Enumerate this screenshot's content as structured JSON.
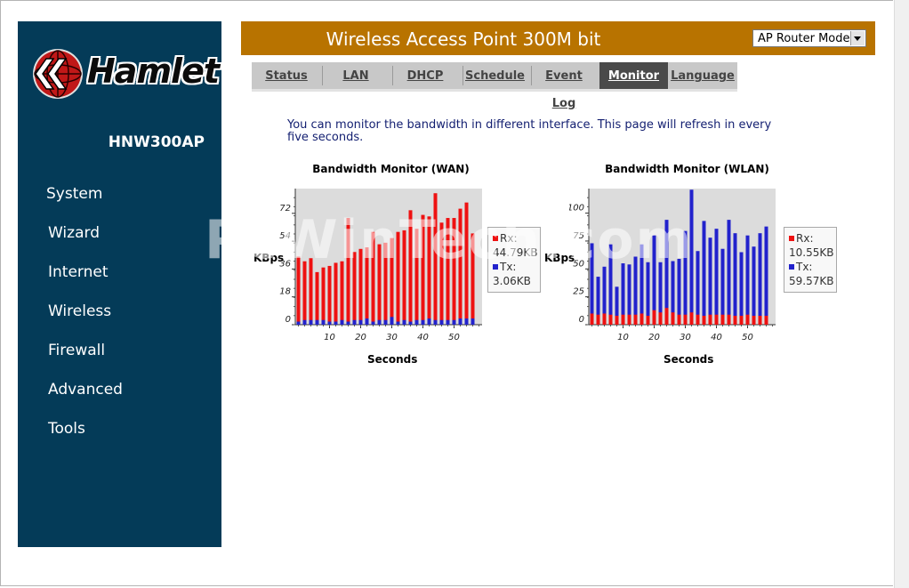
{
  "header": {
    "title": "Wireless Access Point 300M bit",
    "mode_select": "AP Router Mode"
  },
  "brand": {
    "logo_text": "Hamlet",
    "model": "HNW300AP"
  },
  "sidebar": {
    "items": [
      {
        "label": "System"
      },
      {
        "label": "Wizard"
      },
      {
        "label": "Internet"
      },
      {
        "label": "Wireless"
      },
      {
        "label": "Firewall"
      },
      {
        "label": "Advanced"
      },
      {
        "label": "Tools"
      }
    ]
  },
  "tabs": [
    {
      "label": "Status"
    },
    {
      "label": "LAN"
    },
    {
      "label": "DHCP"
    },
    {
      "label": "Schedule"
    },
    {
      "label": "Event Log"
    },
    {
      "label": "Monitor",
      "active": true
    },
    {
      "label": "Language"
    }
  ],
  "description": "You can monitor the bandwidth in different interface. This page will refresh in every five seconds.",
  "watermark": "PcWinTech.com",
  "colors": {
    "rx": "#ee1111",
    "tx": "#2222cc",
    "plot_bg": "#dcdcdc",
    "header": "#b87300",
    "sidebar": "#043b58"
  },
  "chart_data": [
    {
      "type": "bar",
      "title": "Bandwidth Monitor (WAN)",
      "xlabel": "Seconds",
      "ylabel": "KBps",
      "yticks": [
        0,
        18,
        36,
        54,
        72
      ],
      "xticks": [
        10,
        20,
        30,
        40,
        50
      ],
      "ylim": [
        0,
        88
      ],
      "xlim": [
        -1,
        59
      ],
      "x": [
        0,
        2,
        4,
        6,
        8,
        10,
        12,
        14,
        16,
        18,
        20,
        22,
        24,
        26,
        28,
        30,
        32,
        34,
        36,
        38,
        40,
        42,
        44,
        46,
        48,
        50,
        52,
        54,
        56
      ],
      "series": [
        {
          "name": "Rx",
          "values": [
            44,
            41,
            43,
            34,
            37,
            38,
            40,
            41,
            69,
            47,
            49,
            50,
            60,
            52,
            53,
            56,
            60,
            61,
            74,
            62,
            71,
            70,
            85,
            66,
            69,
            69,
            75,
            79,
            59
          ]
        },
        {
          "name": "Tx",
          "values": [
            2,
            3,
            3,
            3,
            3,
            2,
            2,
            3,
            2,
            3,
            3,
            4,
            2,
            3,
            3,
            5,
            2,
            3,
            2,
            3,
            3,
            4,
            3,
            3,
            3,
            3,
            4,
            4,
            4
          ]
        }
      ],
      "legend": [
        {
          "label": "Rx:",
          "value": "44.79KB"
        },
        {
          "label": "Tx:",
          "value": "3.06KB"
        }
      ]
    },
    {
      "type": "bar",
      "title": "Bandwidth Monitor (WLAN)",
      "xlabel": "Seconds",
      "ylabel": "KBps",
      "yticks": [
        0,
        25,
        50,
        75,
        100
      ],
      "xticks": [
        10,
        20,
        30,
        40,
        50
      ],
      "ylim": [
        0,
        122
      ],
      "xlim": [
        -1,
        59
      ],
      "x": [
        0,
        2,
        4,
        6,
        8,
        10,
        12,
        14,
        16,
        18,
        20,
        22,
        24,
        26,
        28,
        30,
        32,
        34,
        36,
        38,
        40,
        42,
        44,
        46,
        48,
        50,
        52,
        54,
        56
      ],
      "series": [
        {
          "name": "Rx",
          "values": [
            10,
            9,
            10,
            9,
            8,
            9,
            9,
            9,
            10,
            8,
            13,
            11,
            15,
            11,
            9,
            9,
            11,
            9,
            8,
            9,
            9,
            9,
            9,
            8,
            8,
            9,
            8,
            8,
            8
          ]
        },
        {
          "name": "Tx",
          "values": [
            73,
            43,
            52,
            72,
            34,
            55,
            54,
            61,
            72,
            56,
            80,
            56,
            94,
            57,
            59,
            84,
            121,
            66,
            93,
            78,
            86,
            68,
            94,
            82,
            65,
            80,
            70,
            82,
            88
          ]
        }
      ],
      "legend": [
        {
          "label": "Rx:",
          "value": "10.55KB"
        },
        {
          "label": "Tx:",
          "value": "59.57KB"
        }
      ]
    }
  ]
}
